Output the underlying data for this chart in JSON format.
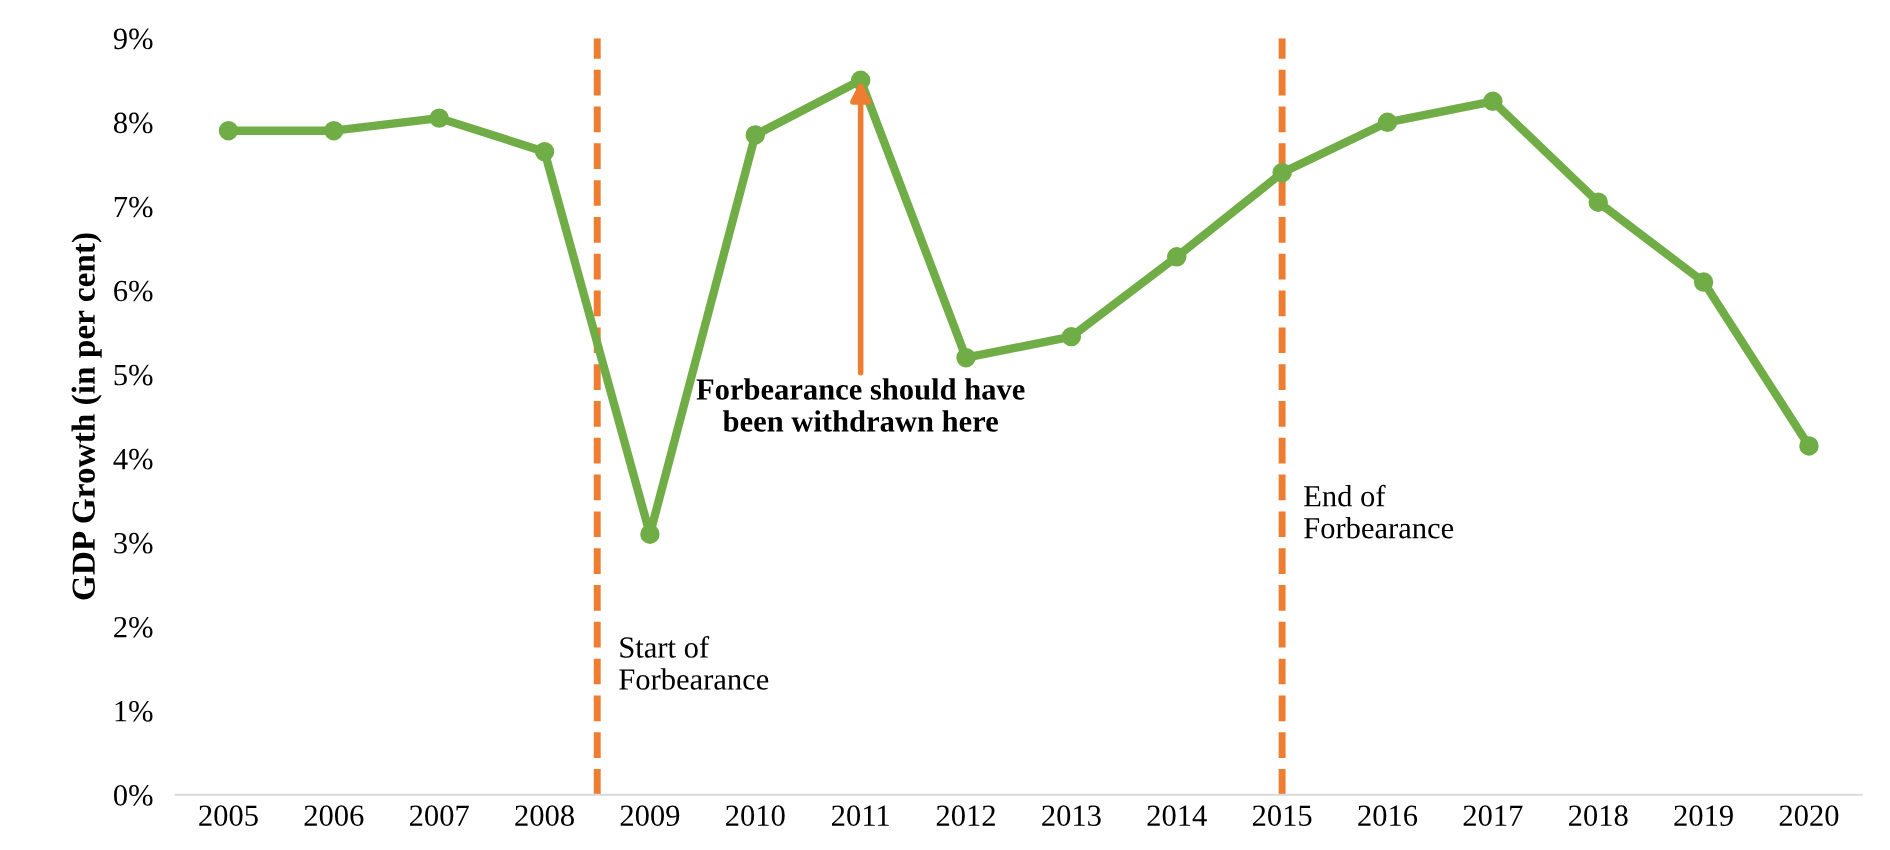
{
  "chart_data": {
    "type": "line",
    "ylabel": "GDP Growth (in per cent)",
    "x": [
      2005,
      2006,
      2007,
      2008,
      2009,
      2010,
      2011,
      2012,
      2013,
      2014,
      2015,
      2016,
      2017,
      2018,
      2019,
      2020
    ],
    "series": [
      {
        "color": "#70ad47",
        "values": [
          7.9,
          7.9,
          8.05,
          7.65,
          3.1,
          7.85,
          8.5,
          5.2,
          5.45,
          6.4,
          7.4,
          8.0,
          8.25,
          7.05,
          6.1,
          4.15
        ]
      }
    ],
    "marker": "circle",
    "line_style": "solid",
    "grid": false,
    "legend": false,
    "xlim": [
      2004.5,
      2020.5
    ],
    "xticks": [
      2005,
      2006,
      2007,
      2008,
      2009,
      2010,
      2011,
      2012,
      2013,
      2014,
      2015,
      2016,
      2017,
      2018,
      2019,
      2020
    ],
    "ylim": [
      0,
      9
    ],
    "yticks": [
      {
        "value": 0,
        "label": "0%"
      },
      {
        "value": 1,
        "label": "1%"
      },
      {
        "value": 2,
        "label": "2%"
      },
      {
        "value": 3,
        "label": "3%"
      },
      {
        "value": 4,
        "label": "4%"
      },
      {
        "value": 5,
        "label": "5%"
      },
      {
        "value": 6,
        "label": "6%"
      },
      {
        "value": 7,
        "label": "7%"
      },
      {
        "value": 8,
        "label": "8%"
      },
      {
        "value": 9,
        "label": "9%"
      }
    ],
    "ref_lines": [
      {
        "axis": "x",
        "value": 2008.5,
        "label": "Start of\nForbearance",
        "color": "#ed7d31",
        "line_style": "dashed"
      },
      {
        "axis": "x",
        "value": 2015,
        "label": "End of\nForbearance",
        "color": "#ed7d31",
        "line_style": "dashed"
      }
    ],
    "annotations": [
      {
        "text": "Forbearance should have\nbeen withdrawn here",
        "x": 2011,
        "y": 8.5
      }
    ]
  }
}
